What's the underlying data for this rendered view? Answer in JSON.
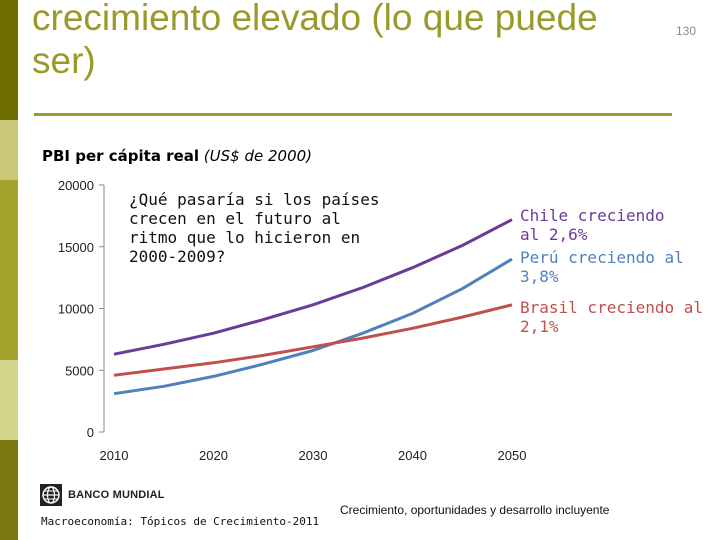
{
  "slide": {
    "title": "crecimiento elevado (lo que puede ser)",
    "number": "130",
    "footer_left": "Macroeconomía: Tópicos de Crecimiento-2011",
    "footer_center": "Crecimiento, oportunidades y desarrollo incluyente",
    "logo_text": "BANCO MUNDIAL",
    "logo_icon": "globe-icon"
  },
  "colors": {
    "title": "#9a9a2a",
    "sidebar": [
      "#6e6e00",
      "#c8c878",
      "#a3a32e",
      "#d4d48a",
      "#7a7a10"
    ],
    "chile": "#6a3c98",
    "peru": "#4f81bd",
    "brasil": "#c0504d"
  },
  "chart_data": {
    "type": "line",
    "title": "PBI per cápita real",
    "title_unit": "(US$ de 2000)",
    "annotation": "¿Qué pasaría si los países crecen en el futuro al ritmo que lo hicieron en 2000-2009?",
    "x": [
      2010,
      2015,
      2020,
      2025,
      2030,
      2035,
      2040,
      2045,
      2050
    ],
    "x_ticks": [
      "2010",
      "2020",
      "2030",
      "2040",
      "2050"
    ],
    "y_ticks": [
      "20000",
      "15000",
      "10000",
      "5000",
      "0"
    ],
    "xlim": [
      2010,
      2050
    ],
    "ylim": [
      0,
      20000
    ],
    "series": [
      {
        "name": "Chile creciendo al 2,6%",
        "key": "chile",
        "values": [
          6300,
          7100,
          8000,
          9100,
          10300,
          11700,
          13300,
          15100,
          17200
        ]
      },
      {
        "name": "Perú creciendo al 3,8%",
        "key": "peru",
        "values": [
          3100,
          3700,
          4500,
          5500,
          6600,
          8000,
          9600,
          11600,
          14000
        ]
      },
      {
        "name": "Brasil creciendo al 2,1%",
        "key": "brasil",
        "values": [
          4600,
          5100,
          5600,
          6200,
          6900,
          7600,
          8400,
          9300,
          10300
        ]
      }
    ],
    "labels": {
      "chile": "Chile creciendo al 2,6%",
      "peru": "Perú creciendo al 3,8%",
      "brasil": "Brasil creciendo al 2,1%"
    }
  }
}
